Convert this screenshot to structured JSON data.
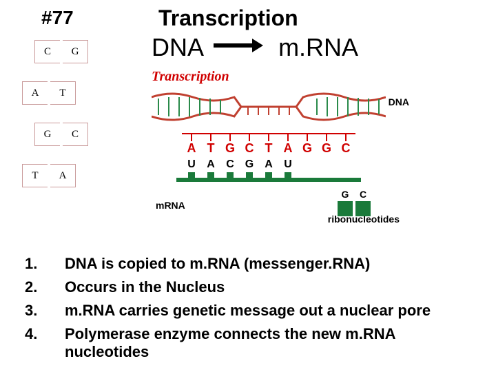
{
  "slide_number": "#77",
  "title": "Transcription",
  "subtitle_left": "DNA",
  "subtitle_right": "m.RNA",
  "base_pairs": [
    {
      "l": "C",
      "r": "G"
    },
    {
      "l": "A",
      "r": "T"
    },
    {
      "l": "G",
      "r": "C"
    },
    {
      "l": "T",
      "r": "A"
    }
  ],
  "diagram": {
    "heading": "Transcription",
    "dna_label": "DNA",
    "mrna_label": "mRNA",
    "ribo_label": "ribonucleotides",
    "dna_template": [
      "A",
      "T",
      "G",
      "C",
      "T",
      "A",
      "G",
      "G",
      "C"
    ],
    "mrna_seq": [
      "U",
      "A",
      "C",
      "G",
      "A",
      "U"
    ],
    "ribo_free": [
      "G",
      "C"
    ],
    "colors": {
      "title": "#d00000",
      "dna_strand": "#c04030",
      "mrna": "#1a7a3a",
      "letters": "#000000"
    }
  },
  "bullets": [
    "DNA is copied to m.RNA (messenger.RNA)",
    "Occurs in the Nucleus",
    "m.RNA carries genetic message out a nuclear pore",
    "Polymerase enzyme connects the new m.RNA nucleotides"
  ]
}
